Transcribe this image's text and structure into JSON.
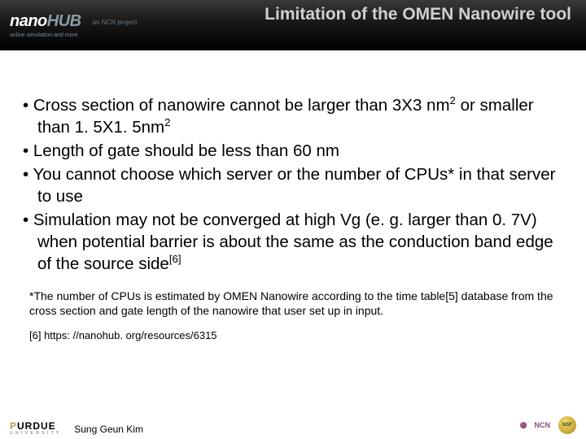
{
  "header": {
    "logo_main": "nano",
    "logo_sub": "HUB",
    "tagline": "online simulation and more",
    "ncn_badge": "an NCN project",
    "title": "Limitation of the OMEN Nanowire tool"
  },
  "bullets": {
    "b1a": "Cross section of nanowire cannot be larger than 3X3 nm",
    "b1b": " or smaller than 1. 5X1. 5nm",
    "b2": "Length of gate should be less than 60 nm",
    "b3": "You cannot choose which server or the number of CPUs* in that server to use",
    "b4a": "Simulation may not be converged at high Vg (e. g. larger than 0. 7V) when potential barrier is about the same as the conduction band edge of the source side",
    "b4ref": "[6]"
  },
  "footnotes": {
    "f1": "*The number of CPUs is estimated by OMEN Nanowire according to the time table[5] database from the cross section and gate length of the nanowire that user set up in input.",
    "f2": "[6] https: //nanohub. org/resources/6315"
  },
  "footer": {
    "purdue": "PURDUE",
    "purdue_sub": "U N I V E R S I T Y",
    "author": "Sung Geun Kim",
    "ncn": "NCN",
    "nsf": "NSF"
  }
}
